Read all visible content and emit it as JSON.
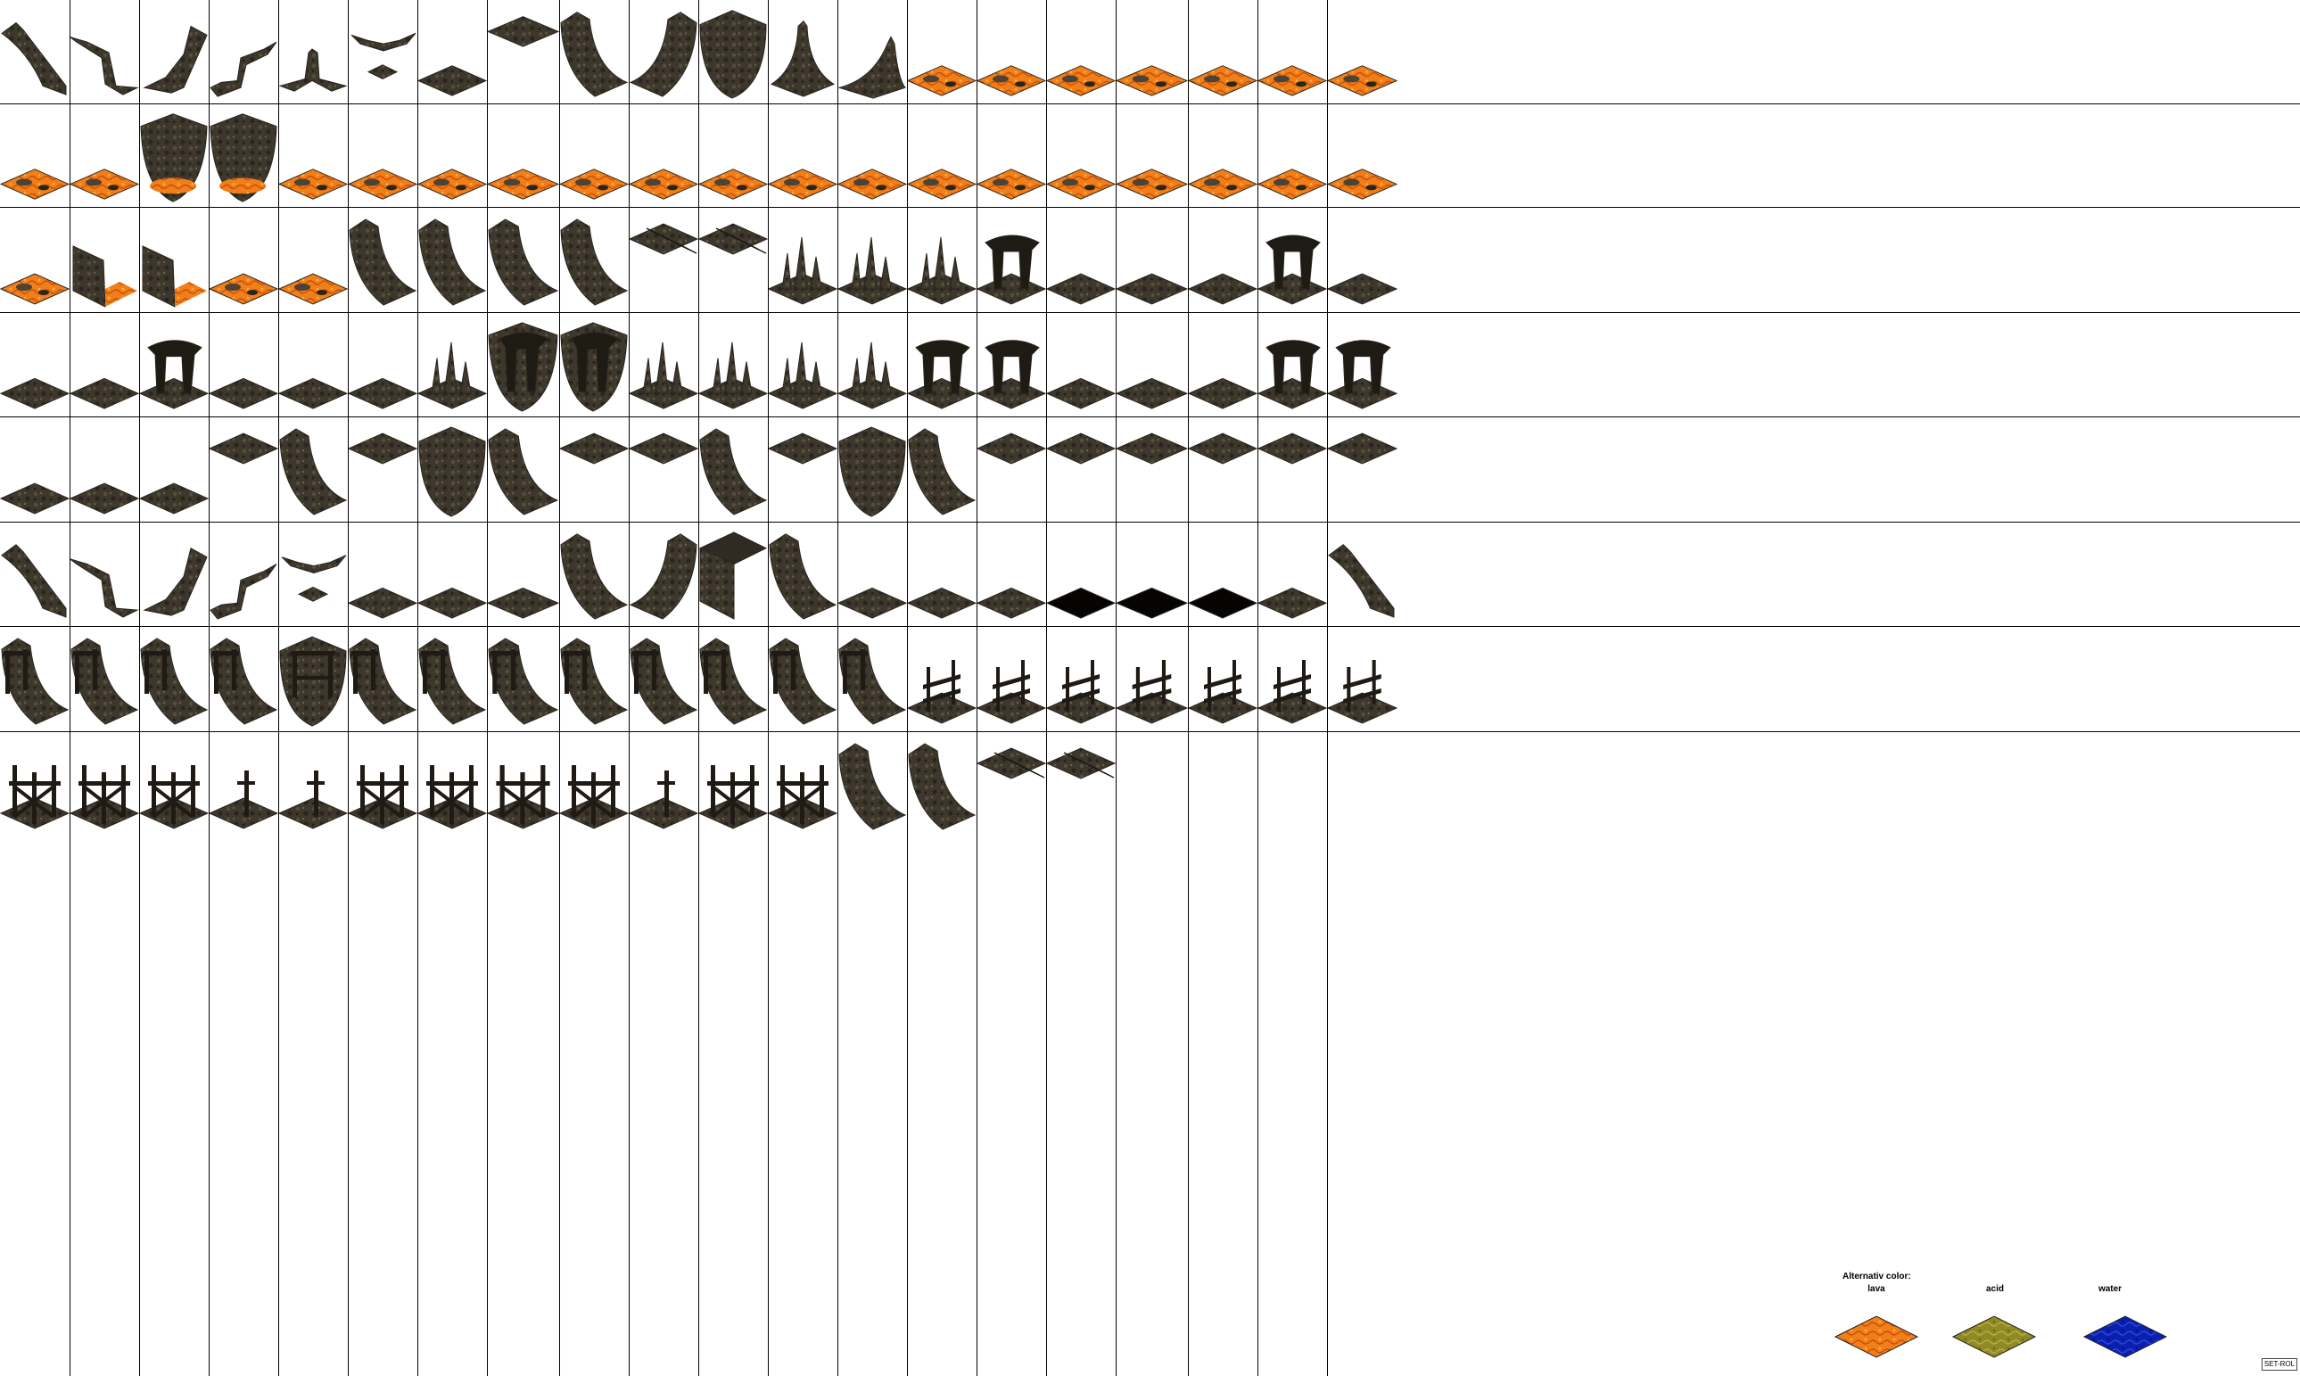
{
  "sheet": {
    "columns": 20,
    "rows": 8,
    "palette": {
      "grid_line": "#000000",
      "background": "#ffffff",
      "rock_dark": "#2a261e",
      "rock_mid": "#4a4336",
      "rock_light": "#6b604c",
      "lava_orange": "#f07f1a",
      "lava_dark": "#c94d08",
      "acid_olive": "#8f8a24",
      "acid_light": "#b5ae43",
      "water_blue": "#0b1fb0",
      "water_light": "#2c47d8",
      "timber": "#1f1a14"
    },
    "tiles": [
      "wall-left",
      "wall-diag",
      "wall-right",
      "wall-corner",
      "wall-peak",
      "ridge-small",
      "floor",
      "floor-raised",
      "wall-curve-left",
      "wall-curve-right",
      "wall-curve-both",
      "spike-tall",
      "spike-double",
      "lava-floor",
      "lava-floor",
      "lava-floor",
      "lava-floor",
      "lava-floor",
      "lava-floor",
      "lava-floor",
      "lava-floor",
      "lava-floor",
      "lava-wall-curve",
      "lava-wall-curve",
      "lava-floor",
      "lava-floor",
      "lava-floor",
      "lava-floor",
      "lava-floor",
      "lava-floor",
      "lava-floor",
      "lava-floor",
      "lava-floor",
      "lava-floor",
      "lava-floor",
      "lava-floor",
      "lava-floor",
      "lava-floor",
      "lava-floor",
      "lava-floor",
      "lava-floor",
      "lava-wall-edge",
      "lava-wall-edge",
      "lava-floor",
      "lava-floor",
      "wall-curve-left",
      "wall-curve-left",
      "wall-curve-left",
      "wall-curve-left",
      "stairs",
      "stairs",
      "stalagmites",
      "stalagmites",
      "stalagmites",
      "pillar-arch",
      "floor",
      "floor",
      "floor",
      "pillar-arch",
      "floor",
      "floor",
      "floor",
      "pillar-arch",
      "floor",
      "floor",
      "floor",
      "stalagmites",
      "pillar-wall",
      "pillar-wall",
      "stalagmites",
      "stalagmites",
      "stalagmites",
      "stalagmites",
      "pillar-arch",
      "pillar-arch",
      "floor",
      "floor",
      "floor",
      "pillar-arch",
      "pillar-arch",
      "floor",
      "floor",
      "floor",
      "floor-raised",
      "wall-curve-left",
      "floor-raised",
      "wall-curve-both",
      "wall-curve-left",
      "floor-raised",
      "floor-raised",
      "wall-curve-left",
      "floor-raised",
      "wall-curve-both",
      "wall-curve-left",
      "floor-raised",
      "floor-raised",
      "floor-raised",
      "floor-raised",
      "floor-raised",
      "floor-raised",
      "wall-left",
      "wall-diag",
      "wall-right",
      "wall-corner",
      "ridge-small",
      "floor",
      "floor",
      "floor",
      "wall-curve-left",
      "wall-curve-right",
      "wall-corner-box",
      "wall-curve-left",
      "floor",
      "floor",
      "floor",
      "floor-black",
      "floor-black",
      "floor-black",
      "floor",
      "wall-left",
      "mine-wall",
      "mine-wall",
      "mine-wall",
      "mine-wall",
      "mine-wall-both",
      "mine-wall",
      "mine-wall",
      "mine-wall",
      "mine-wall",
      "mine-wall",
      "mine-wall",
      "mine-wall",
      "mine-wall",
      "fence",
      "fence",
      "fence",
      "fence",
      "fence",
      "fence",
      "fence",
      "scaffold",
      "scaffold",
      "scaffold",
      "post",
      "post",
      "scaffold",
      "scaffold",
      "scaffold",
      "scaffold",
      "post",
      "scaffold",
      "scaffold",
      "wall-curve-left",
      "wall-curve-left",
      "stairs",
      "stairs",
      "empty",
      "empty",
      "empty",
      "empty"
    ]
  },
  "legend": {
    "title": "Alternativ color:",
    "swatches": [
      {
        "label": "lava",
        "kind": "lava"
      },
      {
        "label": "acid",
        "kind": "acid"
      },
      {
        "label": "water",
        "kind": "water"
      }
    ]
  },
  "watermark": "SET-ROL"
}
